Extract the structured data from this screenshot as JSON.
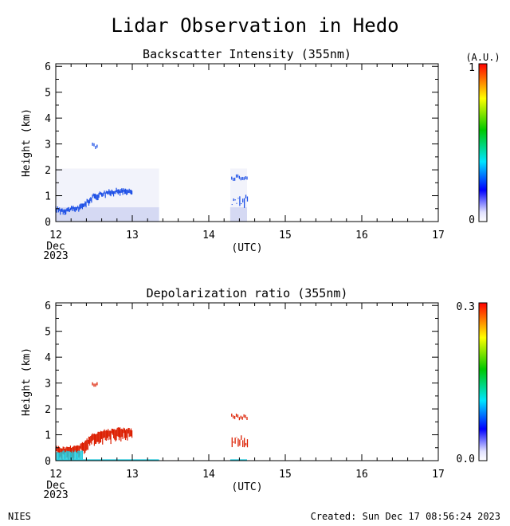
{
  "figure": {
    "title": "Lidar Observation in Hedo",
    "footer_left": "NIES",
    "footer_right": "Created: Sun Dec 17 08:56:24 2023"
  },
  "colors": {
    "high": "#ff0000",
    "midhigh": "#ffff00",
    "mid": "#00c800",
    "midlow": "#00e5ff",
    "low": "#0000ff",
    "zero": "#ffffff",
    "backscatter_trace": "#1e50e6",
    "depol_trace": "#dc1e00",
    "depol_low": "#19c8dc"
  },
  "chart_data": [
    {
      "type": "heatmap",
      "title": "Backscatter Intensity (355nm)",
      "xlabel": "(UTC)",
      "ylabel": "Height (km)",
      "xlim": [
        12,
        17
      ],
      "ylim": [
        0,
        6.1
      ],
      "x_ticks": [
        "12",
        "13",
        "14",
        "15",
        "16",
        "17"
      ],
      "x_date_line1": "Dec",
      "x_date_line2": "2023",
      "y_ticks": [
        "0",
        "1",
        "2",
        "3",
        "4",
        "5",
        "6"
      ],
      "colorbar": {
        "min_label": "0",
        "max_label": "1",
        "unit": "(A.U.)"
      },
      "features": [
        {
          "name": "boundary-layer-top",
          "x": [
            12.0,
            12.1,
            12.2,
            12.3,
            12.4,
            12.5,
            12.6,
            12.7,
            12.8,
            12.9,
            13.0
          ],
          "y": [
            0.55,
            0.5,
            0.55,
            0.6,
            0.8,
            1.05,
            1.15,
            1.2,
            1.25,
            1.25,
            1.2
          ]
        },
        {
          "name": "cloud-patch",
          "x": [
            12.48,
            12.55
          ],
          "y": [
            3.0,
            3.0
          ]
        },
        {
          "name": "cloud-patch",
          "x": [
            14.3,
            14.5
          ],
          "y": [
            1.75,
            1.75
          ]
        }
      ],
      "data_coverage": [
        [
          12.0,
          13.35
        ],
        [
          14.28,
          14.5
        ]
      ]
    },
    {
      "type": "heatmap",
      "title": "Depolarization ratio (355nm)",
      "xlabel": "(UTC)",
      "ylabel": "Height (km)",
      "xlim": [
        12,
        17
      ],
      "ylim": [
        0,
        6.1
      ],
      "x_ticks": [
        "12",
        "13",
        "14",
        "15",
        "16",
        "17"
      ],
      "x_date_line1": "Dec",
      "x_date_line2": "2023",
      "y_ticks": [
        "0",
        "1",
        "2",
        "3",
        "4",
        "5",
        "6"
      ],
      "colorbar": {
        "min_label": "0.0",
        "max_label": "0.3"
      },
      "features": [
        {
          "name": "high-depol-layer",
          "x": [
            12.0,
            12.1,
            12.2,
            12.3,
            12.4,
            12.5,
            12.6,
            12.7,
            12.8,
            12.9,
            13.0
          ],
          "y": [
            0.55,
            0.5,
            0.55,
            0.6,
            0.8,
            1.05,
            1.15,
            1.2,
            1.25,
            1.25,
            1.2
          ]
        },
        {
          "name": "cloud-patch",
          "x": [
            12.48,
            12.55
          ],
          "y": [
            3.0,
            3.0
          ]
        },
        {
          "name": "cloud-patch",
          "x": [
            14.3,
            14.5
          ],
          "y": [
            1.75,
            1.75
          ]
        }
      ]
    }
  ]
}
